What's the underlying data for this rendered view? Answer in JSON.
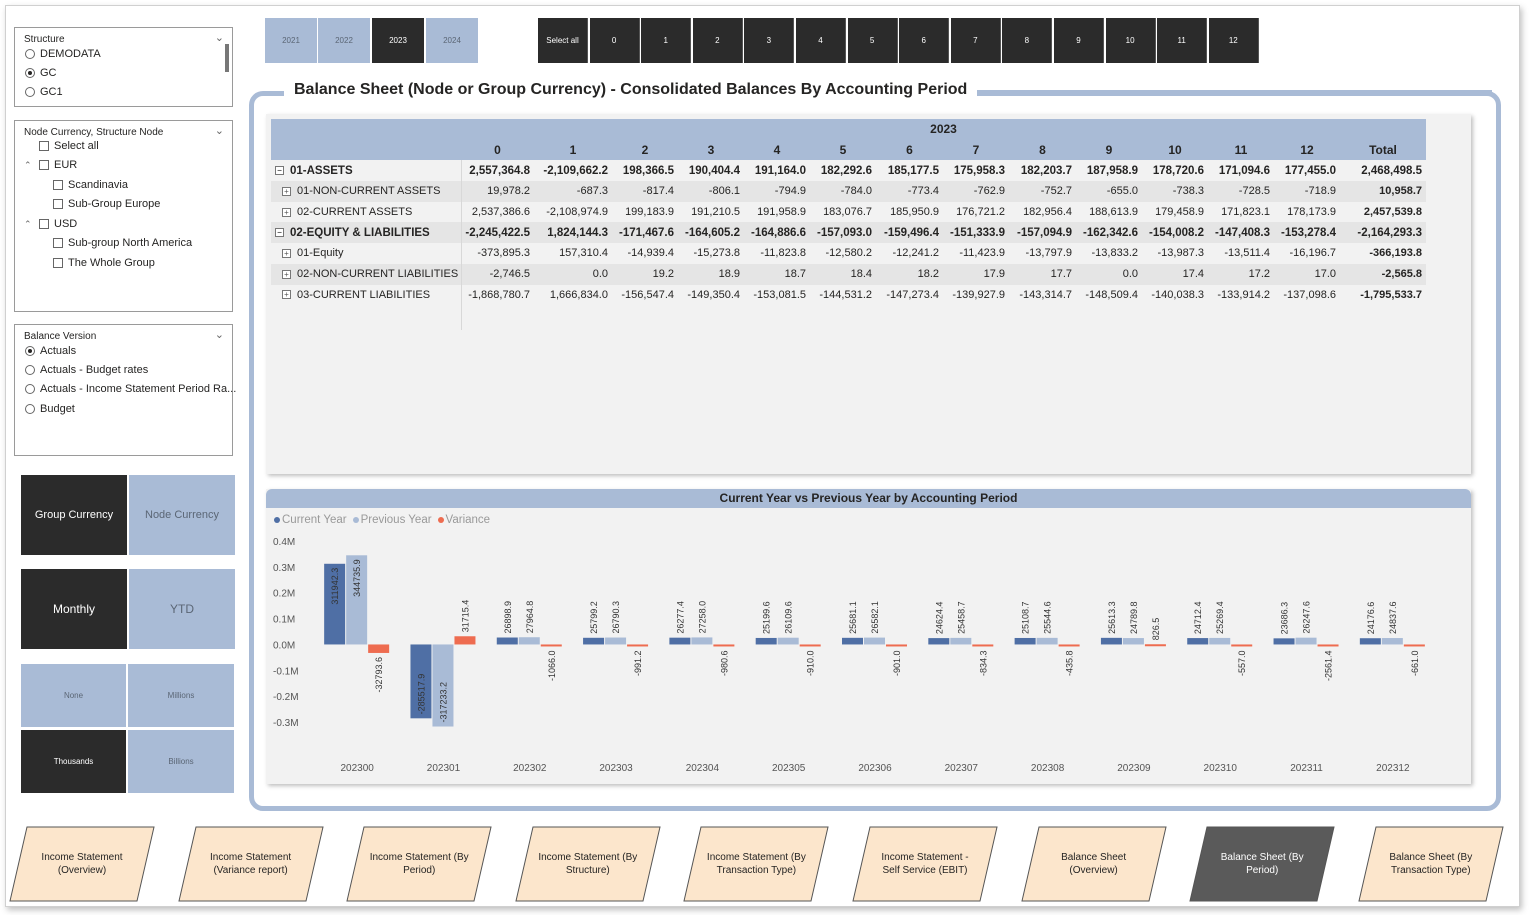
{
  "slicers": {
    "structure": {
      "title": "Structure",
      "options": [
        {
          "label": "DEMODATA",
          "selected": false
        },
        {
          "label": "GC",
          "selected": true
        },
        {
          "label": "GC1",
          "selected": false
        }
      ]
    },
    "node": {
      "title": "Node Currency, Structure Node",
      "items": [
        "Select all",
        "EUR",
        "Scandinavia",
        "Sub-Group Europe",
        "USD",
        "Sub-group North America",
        "The Whole Group"
      ]
    },
    "balance": {
      "title": "Balance Version",
      "options": [
        {
          "label": "Actuals",
          "selected": true
        },
        {
          "label": "Actuals - Budget rates",
          "selected": false
        },
        {
          "label": "Actuals - Income Statement Period Ra...",
          "selected": false
        },
        {
          "label": "Budget",
          "selected": false
        }
      ]
    }
  },
  "toggles": {
    "currency": {
      "left": "Group Currency",
      "right": "Node Currency",
      "active": "left"
    },
    "period": {
      "left": "Monthly",
      "right": "YTD",
      "active": "left"
    },
    "units": [
      "None",
      "Millions",
      "Thousands",
      "Billions"
    ],
    "units_active": "Thousands"
  },
  "years": [
    "2021",
    "2022",
    "2023",
    "2024"
  ],
  "year_active": "2023",
  "periods": [
    "Select all",
    "0",
    "1",
    "2",
    "3",
    "4",
    "5",
    "6",
    "7",
    "8",
    "9",
    "10",
    "11",
    "12"
  ],
  "title": "Balance Sheet (Node or Group Currency) - Consolidated Balances By Accounting Period",
  "matrix": {
    "year": "2023",
    "columns": [
      "0",
      "1",
      "2",
      "3",
      "4",
      "5",
      "6",
      "7",
      "8",
      "9",
      "10",
      "11",
      "12",
      "Total"
    ],
    "rows": [
      {
        "label": "01-ASSETS",
        "level": 0,
        "bold": true,
        "shade": false,
        "values": [
          "2,557,364.8",
          "-2,109,662.2",
          "198,366.5",
          "190,404.4",
          "191,164.0",
          "182,292.6",
          "185,177.5",
          "175,958.3",
          "182,203.7",
          "187,958.9",
          "178,720.6",
          "171,094.6",
          "177,455.0",
          "2,468,498.5"
        ]
      },
      {
        "label": "01-NON-CURRENT ASSETS",
        "level": 1,
        "bold": false,
        "shade": true,
        "values": [
          "19,978.2",
          "-687.3",
          "-817.4",
          "-806.1",
          "-794.9",
          "-784.0",
          "-773.4",
          "-762.9",
          "-752.7",
          "-655.0",
          "-738.3",
          "-728.5",
          "-718.9",
          "10,958.7"
        ]
      },
      {
        "label": "02-CURRENT ASSETS",
        "level": 1,
        "bold": false,
        "shade": false,
        "values": [
          "2,537,386.6",
          "-2,108,974.9",
          "199,183.9",
          "191,210.5",
          "191,958.9",
          "183,076.7",
          "185,950.9",
          "176,721.2",
          "182,956.4",
          "188,613.9",
          "179,458.9",
          "171,823.1",
          "178,173.9",
          "2,457,539.8"
        ]
      },
      {
        "label": "02-EQUITY & LIABILITIES",
        "level": 0,
        "bold": true,
        "shade": true,
        "values": [
          "-2,245,422.5",
          "1,824,144.3",
          "-171,467.6",
          "-164,605.2",
          "-164,886.6",
          "-157,093.0",
          "-159,496.4",
          "-151,333.9",
          "-157,094.9",
          "-162,342.6",
          "-154,008.2",
          "-147,408.3",
          "-153,278.4",
          "-2,164,293.3"
        ]
      },
      {
        "label": "01-Equity",
        "level": 1,
        "bold": false,
        "shade": false,
        "values": [
          "-373,895.3",
          "157,310.4",
          "-14,939.4",
          "-15,273.8",
          "-11,823.8",
          "-12,580.2",
          "-12,241.2",
          "-11,423.9",
          "-13,797.9",
          "-13,833.2",
          "-13,987.3",
          "-13,511.4",
          "-16,196.7",
          "-366,193.8"
        ]
      },
      {
        "label": "02-NON-CURRENT LIABILITIES",
        "level": 1,
        "bold": false,
        "shade": true,
        "values": [
          "-2,746.5",
          "0.0",
          "19.2",
          "18.9",
          "18.7",
          "18.4",
          "18.2",
          "17.9",
          "17.7",
          "0.0",
          "17.4",
          "17.2",
          "17.0",
          "-2,565.8"
        ]
      },
      {
        "label": "03-CURRENT LIABILITIES",
        "level": 1,
        "bold": false,
        "shade": false,
        "values": [
          "-1,868,780.7",
          "1,666,834.0",
          "-156,547.4",
          "-149,350.4",
          "-153,081.5",
          "-144,531.2",
          "-147,273.4",
          "-139,927.9",
          "-143,314.7",
          "-148,509.4",
          "-140,038.3",
          "-133,914.2",
          "-137,098.6",
          "-1,795,533.7"
        ]
      }
    ]
  },
  "chart_title": "Current Year vs Previous Year by Accounting Period",
  "chart_data": {
    "type": "bar",
    "categories": [
      "202300",
      "202301",
      "202302",
      "202303",
      "202304",
      "202305",
      "202306",
      "202307",
      "202308",
      "202309",
      "202310",
      "202311",
      "202312"
    ],
    "series": [
      {
        "name": "Current Year",
        "color": "#4f6fa5",
        "values": [
          311942.3,
          -285517.9,
          26898.9,
          25799.2,
          26277.4,
          25199.6,
          25681.1,
          24624.4,
          25108.7,
          25613.3,
          24712.4,
          23686.3,
          24176.6
        ],
        "labels": [
          "311942.3",
          "-285517.9",
          "26898.9",
          "25799.2",
          "26277.4",
          "25199.6",
          "25681.1",
          "24624.4",
          "25108.7",
          "25613.3",
          "24712.4",
          "23686.3",
          "24176.6"
        ]
      },
      {
        "name": "Previous Year",
        "color": "#a9bbd6",
        "values": [
          344735.9,
          -317233.2,
          27964.8,
          26790.3,
          27258.0,
          26109.6,
          26582.1,
          25458.7,
          25544.6,
          24789.8,
          25269.4,
          26247.6,
          24837.6
        ],
        "labels": [
          "344735.9",
          "-317233.2",
          "27964.8",
          "26790.3",
          "27258.0",
          "26109.6",
          "26582.1",
          "25458.7",
          "25544.6",
          "24789.8",
          "25269.4",
          "26247.6",
          "24837.6"
        ]
      },
      {
        "name": "Variance",
        "color": "#ee6c50",
        "values": [
          -32793.6,
          31715.4,
          -1066.0,
          -991.2,
          -980.6,
          -910.0,
          -901.0,
          -834.3,
          -435.8,
          826.5,
          -557.0,
          -2561.4,
          -661.0
        ],
        "labels": [
          "-32793.6",
          "31715.4",
          "-1066.0",
          "-991.2",
          "-980.6",
          "-910.0",
          "-901.0",
          "-834.3",
          "-435.8",
          "826.5",
          "-557.0",
          "-2561.4",
          "-661.0"
        ]
      }
    ],
    "ylim": [
      -0.35,
      0.4
    ],
    "yticks": [
      {
        "v": 0.4,
        "label": "0.4M"
      },
      {
        "v": 0.3,
        "label": "0.3M"
      },
      {
        "v": 0.2,
        "label": "0.2M"
      },
      {
        "v": 0.1,
        "label": "0.1M"
      },
      {
        "v": 0.0,
        "label": "0.0M"
      },
      {
        "v": -0.1,
        "label": "-0.1M"
      },
      {
        "v": -0.2,
        "label": "-0.2M"
      },
      {
        "v": -0.3,
        "label": "-0.3M"
      }
    ],
    "legend": "top-left"
  },
  "nav": {
    "items": [
      "Income Statement (Overview)",
      "Income Statement (Variance report)",
      "Income Statement (By Period)",
      "Income Statement (By Structure)",
      "Income Statement (By Transaction Type)",
      "Income Statement - Self Service (EBIT)",
      "Balance Sheet (Overview)",
      "Balance Sheet (By Period)",
      "Balance Sheet (By Transaction Type)"
    ],
    "active": "Balance Sheet (By Period)"
  }
}
